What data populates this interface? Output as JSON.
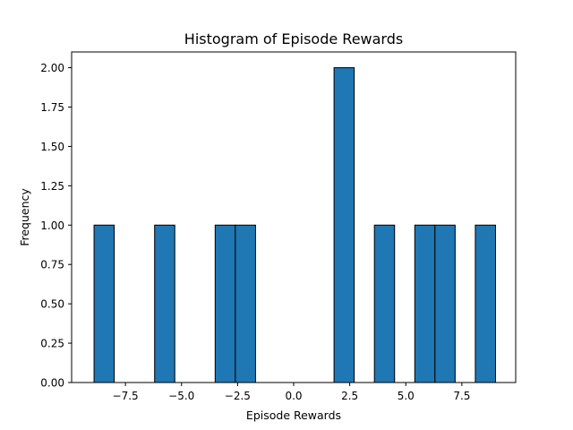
{
  "chart_data": {
    "type": "bar",
    "subtype": "histogram",
    "title": "Histogram of Episode Rewards",
    "xlabel": "Episode Rewards",
    "ylabel": "Frequency",
    "xlim": [
      -9.9,
      9.9
    ],
    "ylim": [
      0,
      2.1
    ],
    "bar_color": "#1f77b4",
    "edge_color": "#000000",
    "grid": false,
    "bins": [
      {
        "start": -8.9,
        "end": -8.0,
        "count": 1
      },
      {
        "start": -6.2,
        "end": -5.3,
        "count": 1
      },
      {
        "start": -3.5,
        "end": -2.6,
        "count": 1
      },
      {
        "start": -2.6,
        "end": -1.7,
        "count": 1
      },
      {
        "start": 1.8,
        "end": 2.7,
        "count": 2
      },
      {
        "start": 3.6,
        "end": 4.5,
        "count": 1
      },
      {
        "start": 5.4,
        "end": 6.3,
        "count": 1
      },
      {
        "start": 6.3,
        "end": 7.2,
        "count": 1
      },
      {
        "start": 8.1,
        "end": 9.0,
        "count": 1
      }
    ],
    "x_ticks": [
      {
        "value": -7.5,
        "label": "−7.5"
      },
      {
        "value": -5.0,
        "label": "−5.0"
      },
      {
        "value": -2.5,
        "label": "−2.5"
      },
      {
        "value": 0.0,
        "label": "0.0"
      },
      {
        "value": 2.5,
        "label": "2.5"
      },
      {
        "value": 5.0,
        "label": "5.0"
      },
      {
        "value": 7.5,
        "label": "7.5"
      }
    ],
    "y_ticks": [
      {
        "value": 0.0,
        "label": "0.00"
      },
      {
        "value": 0.25,
        "label": "0.25"
      },
      {
        "value": 0.5,
        "label": "0.50"
      },
      {
        "value": 0.75,
        "label": "0.75"
      },
      {
        "value": 1.0,
        "label": "1.00"
      },
      {
        "value": 1.25,
        "label": "1.25"
      },
      {
        "value": 1.5,
        "label": "1.50"
      },
      {
        "value": 1.75,
        "label": "1.75"
      },
      {
        "value": 2.0,
        "label": "2.00"
      }
    ]
  }
}
